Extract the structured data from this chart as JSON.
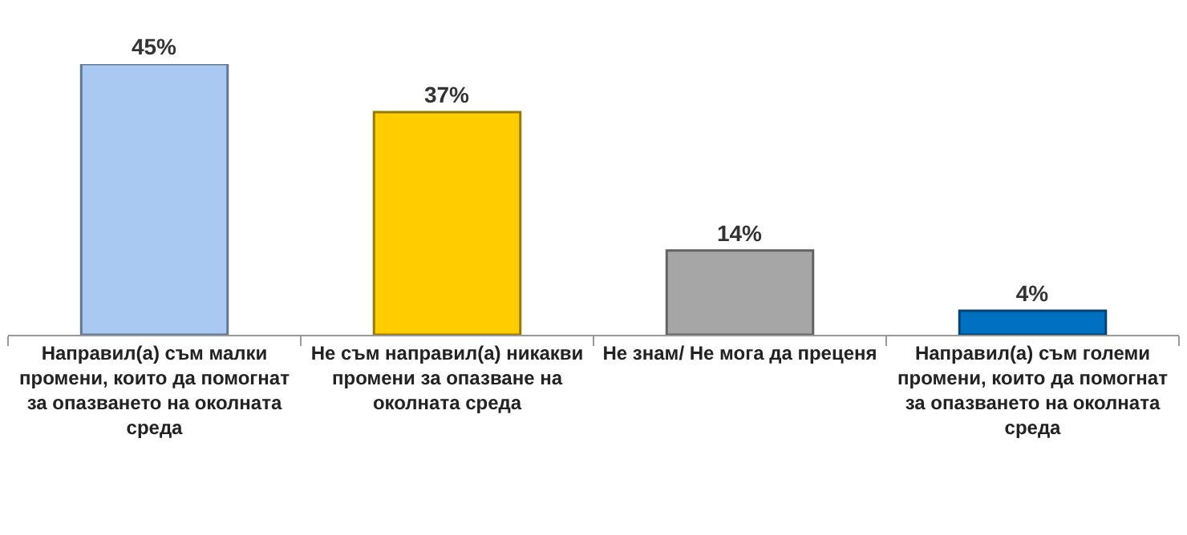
{
  "chart_data": {
    "type": "bar",
    "categories": [
      "Направил(а) съм малки промени, които да помогнат за опазването на околната среда",
      "Не съм направил(а) никакви промени за опазване на околната среда",
      "Не знам/ Не мога да преценя",
      "Направил(а) съм големи промени, които да помогнат за опазването на околната среда"
    ],
    "values": [
      45,
      37,
      14,
      4
    ],
    "colors": [
      "#a9c8f2",
      "#ffcc00",
      "#a6a6a6",
      "#0070c0"
    ],
    "value_labels": [
      "45%",
      "37%",
      "14%",
      "4%"
    ],
    "legend": false
  }
}
